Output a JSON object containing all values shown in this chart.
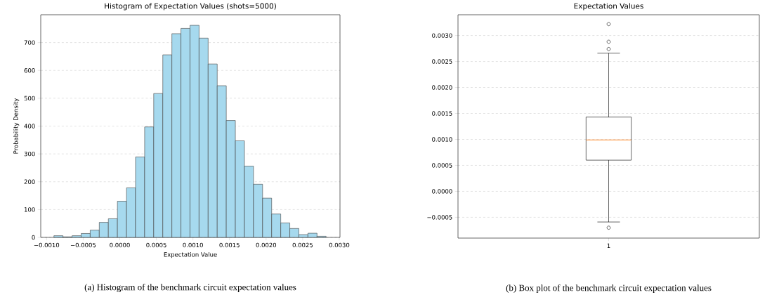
{
  "chart_data": [
    {
      "type": "histogram",
      "title": "Histogram of Expectation Values (shots=5000)",
      "xlabel": "Expectation Value",
      "ylabel": "Probability Density",
      "bins": [
        -0.0009,
        -0.000776,
        -0.000652,
        -0.000528,
        -0.000404,
        -0.00028,
        -0.000156,
        -3.2e-05,
        9.2e-05,
        0.000216,
        0.00034,
        0.000464,
        0.000588,
        0.000712,
        0.000836,
        0.00096,
        0.001084,
        0.001208,
        0.001332,
        0.001456,
        0.00158,
        0.001704,
        0.001828,
        0.001952,
        0.002076,
        0.0022,
        0.002324,
        0.002448,
        0.002572,
        0.002696,
        0.00282
      ],
      "values": [
        6,
        2,
        6,
        14,
        26,
        54,
        67,
        130,
        178,
        289,
        397,
        517,
        656,
        732,
        751,
        762,
        716,
        623,
        545,
        420,
        347,
        256,
        191,
        141,
        84,
        52,
        32,
        10,
        15,
        4
      ],
      "color": "#a6d9ee",
      "xlim": [
        -0.00108,
        0.00301
      ],
      "ylim": [
        0,
        800
      ],
      "xticks": [
        {
          "value": -0.001,
          "label": "−0.0010"
        },
        {
          "value": -0.0005,
          "label": "−0.0005"
        },
        {
          "value": 0,
          "label": "0.0000"
        },
        {
          "value": 0.0005,
          "label": "0.0005"
        },
        {
          "value": 0.001,
          "label": "0.0010"
        },
        {
          "value": 0.0015,
          "label": "0.0015"
        },
        {
          "value": 0.002,
          "label": "0.0020"
        },
        {
          "value": 0.0025,
          "label": "0.0025"
        },
        {
          "value": 0.003,
          "label": "0.0030"
        }
      ],
      "yticks": [
        0,
        100,
        200,
        300,
        400,
        500,
        600,
        700
      ],
      "grid": "y",
      "annotations": [
        "(a) Histogram of the benchmark circuit expectation values"
      ]
    },
    {
      "type": "box",
      "title": "Expectation Values",
      "categories": [
        "1"
      ],
      "boxes": [
        {
          "low": -0.00059,
          "q1": 0.0006,
          "median": 0.00099,
          "q3": 0.00143,
          "high": 0.00266,
          "outliers": [
            0.00322,
            0.00288,
            0.00274,
            -0.0007
          ]
        }
      ],
      "ylim": [
        -0.0009,
        0.0034
      ],
      "yticks": [
        {
          "value": -0.0005,
          "label": "−0.0005"
        },
        {
          "value": 0,
          "label": "0.0000"
        },
        {
          "value": 0.0005,
          "label": "0.0005"
        },
        {
          "value": 0.001,
          "label": "0.0010"
        },
        {
          "value": 0.0015,
          "label": "0.0015"
        },
        {
          "value": 0.002,
          "label": "0.0020"
        },
        {
          "value": 0.0025,
          "label": "0.0025"
        },
        {
          "value": 0.003,
          "label": "0.0030"
        }
      ],
      "grid": "y",
      "annotations": [
        "(b) Box plot of the benchmark circuit expectation values"
      ]
    }
  ]
}
